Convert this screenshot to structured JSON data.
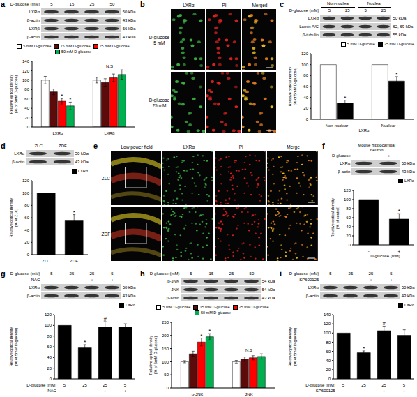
{
  "chart_data": [
    {
      "panel": "a",
      "type": "bar",
      "categories": [
        "LXRα",
        "LXRβ"
      ],
      "ylabel": "Relative optical density (% of 5mM D-glucose)",
      "ylim": [
        0,
        140
      ],
      "yticks": [
        0,
        20,
        40,
        60,
        80,
        100,
        120,
        140
      ],
      "legend": "top",
      "series": [
        {
          "name": "5 mM D-glucose",
          "color": "#ffffff",
          "values": [
            100,
            100
          ],
          "errors": [
            8,
            6
          ]
        },
        {
          "name": "15 mM D-glucose",
          "color": "#5c0a0a",
          "values": [
            75,
            95
          ],
          "errors": [
            6,
            8
          ]
        },
        {
          "name": "25 mM D-glucose",
          "color": "#ff0000",
          "values": [
            55,
            105
          ],
          "errors": [
            6,
            8
          ],
          "annotations": [
            "*",
            null
          ]
        },
        {
          "name": "50 mM D-glucose",
          "color": "#00b050",
          "values": [
            45,
            112
          ],
          "errors": [
            8,
            10
          ],
          "annotations": [
            "*",
            null
          ]
        }
      ],
      "group_annotations": [
        null,
        "N.S"
      ]
    },
    {
      "panel": "c",
      "type": "bar",
      "categories": [
        "Non-nuclear",
        "Nuclear"
      ],
      "xlabel": "LXRα",
      "ylabel": "Relative optical density (% of 5mM D-glucose)",
      "ylim": [
        0,
        120
      ],
      "yticks": [
        0,
        20,
        40,
        60,
        80,
        100,
        120
      ],
      "legend": "top-right",
      "series": [
        {
          "name": "5 mM D-glucose",
          "color": "#ffffff",
          "values": [
            100,
            100
          ],
          "errors": [
            null,
            null
          ]
        },
        {
          "name": "25 mM D-glucose",
          "color": "#000000",
          "values": [
            30,
            70
          ],
          "errors": [
            5,
            8
          ],
          "annotations": [
            "*",
            "*"
          ]
        }
      ]
    },
    {
      "panel": "d",
      "type": "bar",
      "categories": [
        "ZLC",
        "ZDF"
      ],
      "ylabel": "Relative optical density (% of ZLC)",
      "ylim": [
        0,
        120
      ],
      "yticks": [
        0,
        20,
        40,
        60,
        80,
        100,
        120
      ],
      "legend": "top-right",
      "series": [
        {
          "name": "LXRα",
          "color": "#000000",
          "values": [
            100,
            55
          ],
          "errors": [
            null,
            10
          ],
          "annotations": [
            null,
            "*"
          ]
        }
      ]
    },
    {
      "panel": "f",
      "type": "bar",
      "categories": [
        "-",
        "+"
      ],
      "xlabel": "D-glucose (mM)",
      "ylabel": "Relative optical density (% of control)",
      "ylim": [
        0,
        120
      ],
      "yticks": [
        0,
        20,
        40,
        60,
        80,
        100,
        120
      ],
      "legend": "top-right",
      "series": [
        {
          "name": "LXRα",
          "color": "#000000",
          "values": [
            100,
            57
          ],
          "errors": [
            null,
            12
          ],
          "annotations": [
            null,
            "*"
          ]
        }
      ]
    },
    {
      "panel": "g",
      "type": "bar",
      "categories": [
        "5",
        "25",
        "25",
        "5"
      ],
      "xlabel": "D-glucose (mM)",
      "x_rows": [
        {
          "label": "NAC",
          "values": [
            "-",
            "-",
            "+",
            "+"
          ]
        }
      ],
      "ylabel": "Relative optical density (% of 5mM D-glucose)",
      "ylim": [
        0,
        120
      ],
      "yticks": [
        0,
        20,
        40,
        60,
        80,
        100,
        120
      ],
      "legend": "top-right",
      "series": [
        {
          "name": "LXRα",
          "color": "#000000",
          "values": [
            100,
            58,
            97,
            97
          ],
          "errors": [
            null,
            6,
            10,
            6
          ],
          "annotations": [
            null,
            "*",
            "#",
            null
          ]
        }
      ]
    },
    {
      "panel": "h",
      "type": "bar",
      "categories": [
        "p-JNK",
        "JNK"
      ],
      "ylabel": "Relative optical density (% of 5mM D-glucose)",
      "ylim": [
        0,
        250
      ],
      "yticks": [
        0,
        50,
        100,
        150,
        200,
        250
      ],
      "legend": "top",
      "series": [
        {
          "name": "5 mM D-glucose",
          "color": "#ffffff",
          "values": [
            100,
            100
          ],
          "errors": [
            4,
            5
          ]
        },
        {
          "name": "15 mM D-glucose",
          "color": "#5c0a0a",
          "values": [
            130,
            110
          ],
          "errors": [
            10,
            8
          ]
        },
        {
          "name": "25 mM D-glucose",
          "color": "#ff0000",
          "values": [
            175,
            115
          ],
          "errors": [
            15,
            8
          ],
          "annotations": [
            "*",
            null
          ]
        },
        {
          "name": "50 mM D-glucose",
          "color": "#00b050",
          "values": [
            195,
            120
          ],
          "errors": [
            12,
            10
          ],
          "annotations": [
            "*",
            null
          ]
        }
      ],
      "group_annotations": [
        null,
        "N.S"
      ]
    },
    {
      "panel": "i",
      "type": "bar",
      "categories": [
        "5",
        "25",
        "25",
        "5"
      ],
      "xlabel": "D-glucose (mM)",
      "x_rows": [
        {
          "label": "SP600125",
          "values": [
            "-",
            "-",
            "+",
            "+"
          ]
        }
      ],
      "ylabel": "Relative optical density (% of 5mM D-glucose)",
      "ylim": [
        0,
        140
      ],
      "yticks": [
        0,
        20,
        40,
        60,
        80,
        100,
        120,
        140
      ],
      "legend": "top-right",
      "series": [
        {
          "name": "LXRα",
          "color": "#000000",
          "values": [
            100,
            57,
            105,
            95
          ],
          "errors": [
            null,
            4,
            10,
            12
          ],
          "annotations": [
            null,
            "*",
            "#",
            null
          ]
        }
      ]
    }
  ],
  "panels": [
    {
      "panel": "a",
      "blot": {
        "header": [
          {
            "label": "D-glucose (mM)",
            "lanes": [
              "5",
              "15",
              "25",
              "50"
            ]
          }
        ],
        "rows": [
          {
            "name": "LXRα",
            "size": "50 kDa"
          },
          {
            "name": "β-actin",
            "size": "43 kDa"
          },
          {
            "name": "LXRβ",
            "size": "56 kDa"
          },
          {
            "name": "β-actin",
            "size": "43 kDa"
          }
        ]
      }
    },
    {
      "panel": "b",
      "images": {
        "columns": [
          "LXRα",
          "PI",
          "Merged"
        ],
        "rows": [
          "D-glucose 5 mM",
          "D-glucose 25 mM"
        ]
      }
    },
    {
      "panel": "c",
      "blot": {
        "header": [
          {
            "groups": [
              "Non-nuclear",
              "Nuclear"
            ]
          },
          {
            "label": "D-glucose (mM)",
            "lanes": [
              "5",
              "25",
              "5",
              "25"
            ]
          }
        ],
        "rows": [
          {
            "name": "LXRα",
            "size": "50 kDa"
          },
          {
            "name": "Lamin A/C",
            "size": "62, 69 kDa"
          },
          {
            "name": "β-tubulin",
            "size": "55 kDa"
          }
        ]
      }
    },
    {
      "panel": "d",
      "blot": {
        "header": [
          {
            "lanes": [
              "ZLC",
              "ZDF"
            ]
          }
        ],
        "rows": [
          {
            "name": "LXRα",
            "size": "50 kDa"
          },
          {
            "name": "β-actin",
            "size": "43 kDa"
          }
        ]
      }
    },
    {
      "panel": "e",
      "images": {
        "columns": [
          "Low power field",
          "LXRα",
          "PI",
          "Merge"
        ],
        "rows": [
          "ZLC",
          "ZDF"
        ]
      }
    },
    {
      "panel": "f",
      "blot": {
        "header": [
          {
            "title": "Mouse hippocampal neuron"
          },
          {
            "label": "D-glucose",
            "lanes": [
              "-",
              "+"
            ]
          }
        ],
        "rows": [
          {
            "name": "LXRα",
            "size": "50 kDa"
          },
          {
            "name": "β-actin",
            "size": "43 kDa"
          }
        ]
      }
    },
    {
      "panel": "g",
      "blot": {
        "header": [
          {
            "label": "D-glucose (mM)",
            "lanes": [
              "5",
              "25",
              "25",
              "5"
            ]
          },
          {
            "label": "NAC",
            "lanes": [
              "-",
              "-",
              "+",
              "+"
            ]
          }
        ],
        "rows": [
          {
            "name": "LXRα",
            "size": "50 kDa"
          },
          {
            "name": "β-actin",
            "size": "43 kDa"
          }
        ]
      }
    },
    {
      "panel": "h",
      "blot": {
        "header": [
          {
            "label": "D-glucose (mM)",
            "lanes": [
              "5",
              "15",
              "25",
              "50"
            ]
          }
        ],
        "rows": [
          {
            "name": "p-JNK",
            "size": "54 kDa"
          },
          {
            "name": "JNK",
            "size": "54 kDa"
          },
          {
            "name": "β-actin",
            "size": "43 kDa"
          }
        ]
      }
    },
    {
      "panel": "i",
      "blot": {
        "header": [
          {
            "label": "D-glucose (mM)",
            "lanes": [
              "5",
              "25",
              "25",
              "5"
            ]
          },
          {
            "label": "SP600125",
            "lanes": [
              "-",
              "-",
              "+",
              "+"
            ]
          }
        ],
        "rows": [
          {
            "name": "LXRα",
            "size": "50 kDa"
          },
          {
            "name": "β-actin",
            "size": "43 kDa"
          }
        ]
      }
    }
  ]
}
